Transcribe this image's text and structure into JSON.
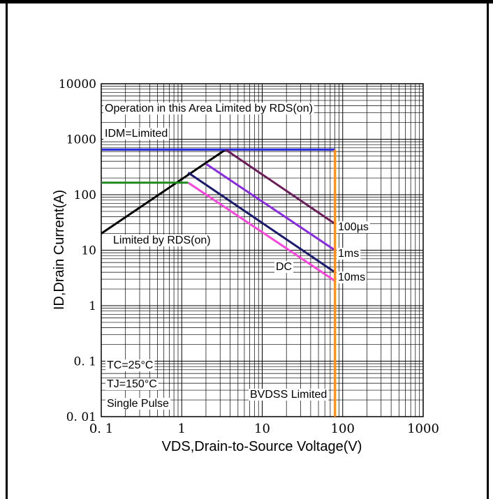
{
  "chart_data": {
    "type": "line",
    "x_scale": "log",
    "y_scale": "log",
    "xlim": [
      0.1,
      1000
    ],
    "ylim": [
      0.01,
      10000
    ],
    "grid": true,
    "xlabel": "VDS,Drain-to-Source Voltage(V)",
    "ylabel": "ID,Drain Current(A)",
    "x_ticks": [
      "0. 1",
      "1",
      "10",
      "100",
      "1000"
    ],
    "y_ticks": [
      "10000",
      "1000",
      "100",
      "10",
      "1",
      "0. 1",
      "0. 01"
    ],
    "series": [
      {
        "name": "",
        "color": "#000000",
        "points": [
          [
            0.1,
            20
          ],
          [
            3.5,
            650
          ]
        ]
      },
      {
        "name": "",
        "color": "#2a2adf",
        "points": [
          [
            0.1,
            650
          ],
          [
            80,
            650
          ]
        ]
      },
      {
        "name": "",
        "color": "#1e8a1e",
        "points": [
          [
            0.1,
            165
          ],
          [
            1.2,
            165
          ]
        ]
      },
      {
        "name": "100µs",
        "color": "#6b1d5a",
        "points": [
          [
            3.5,
            650
          ],
          [
            80,
            30
          ]
        ]
      },
      {
        "name": "1ms",
        "color": "#8a2be2",
        "points": [
          [
            2.0,
            360
          ],
          [
            80,
            10
          ]
        ]
      },
      {
        "name": "10ms",
        "color": "#1a1a6e",
        "points": [
          [
            1.2,
            250
          ],
          [
            80,
            4
          ]
        ]
      },
      {
        "name": "DC",
        "color": "#ff44dd",
        "points": [
          [
            1.2,
            165
          ],
          [
            80,
            2.8
          ]
        ]
      },
      {
        "name": "",
        "color": "#ff8c1a",
        "points": [
          [
            80,
            650
          ],
          [
            80,
            0.01
          ]
        ]
      }
    ],
    "annotations": [
      {
        "key": "area",
        "text": "Operation in this Area Limited by RDS(on)"
      },
      {
        "key": "idm",
        "text": "IDM=Limited"
      },
      {
        "key": "rds",
        "text": "Limited by RDS(on)"
      },
      {
        "key": "l100us",
        "text": "100µs"
      },
      {
        "key": "l1ms",
        "text": "1ms"
      },
      {
        "key": "l10ms",
        "text": "10ms"
      },
      {
        "key": "ldc",
        "text": "DC"
      },
      {
        "key": "tc",
        "text": "TC=25°C"
      },
      {
        "key": "tj",
        "text": "TJ=150°C"
      },
      {
        "key": "pulse",
        "text": "Single Pulse"
      },
      {
        "key": "bvdss",
        "text": "BVDSS Limited"
      }
    ]
  }
}
